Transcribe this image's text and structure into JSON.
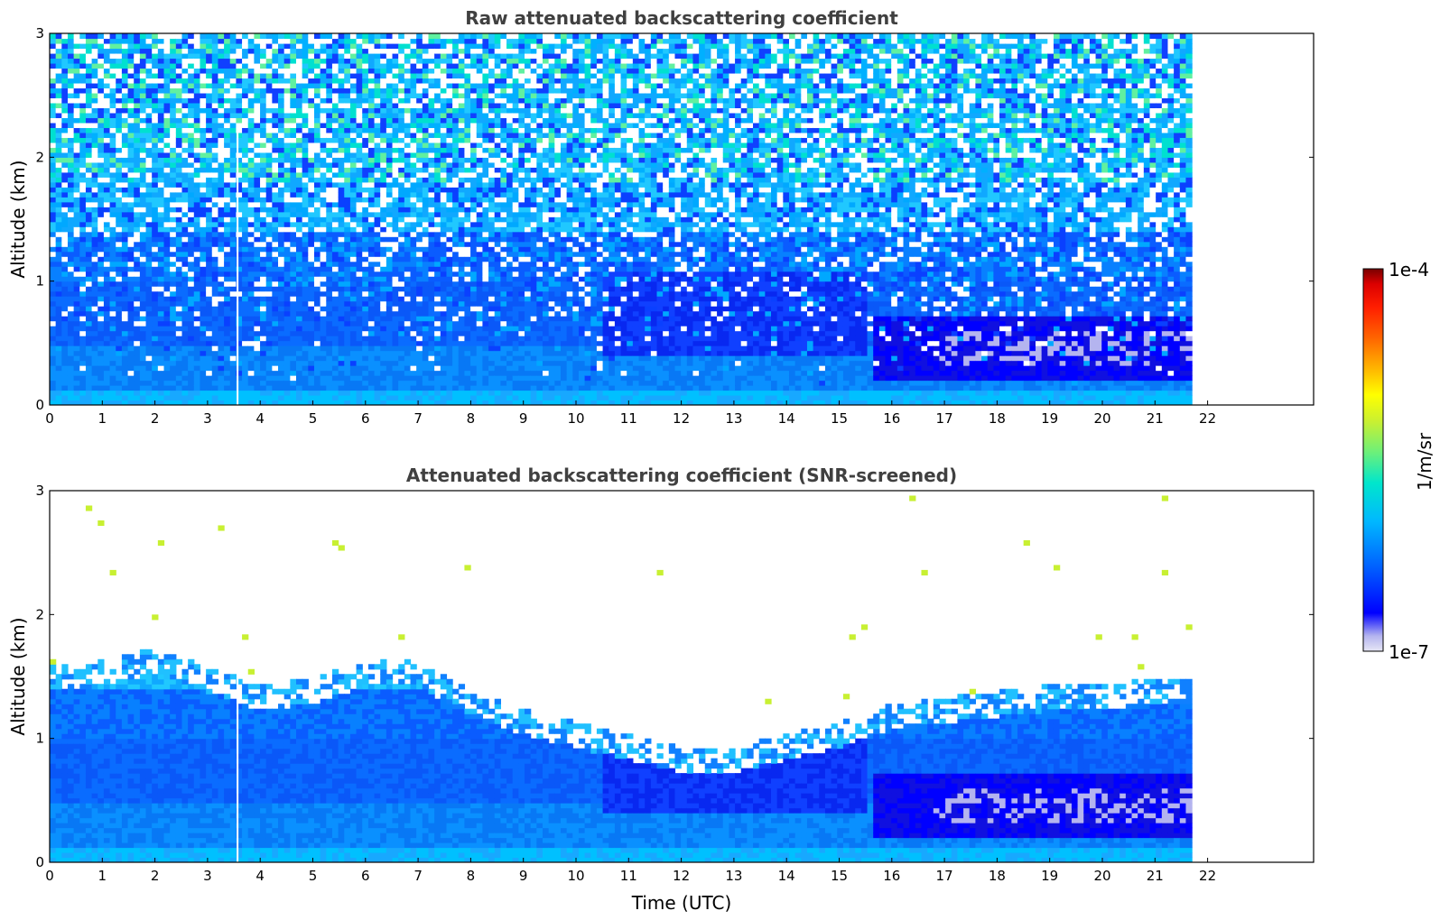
{
  "chart_data": [
    {
      "type": "heatmap",
      "title": "Raw attenuated backscattering coefficient",
      "xlabel": "",
      "ylabel": "Altitude (km)",
      "xlim": [
        0,
        24
      ],
      "ylim": [
        0,
        3
      ],
      "x_ticks": [
        "0",
        "1",
        "2",
        "3",
        "4",
        "5",
        "6",
        "7",
        "8",
        "9",
        "10",
        "11",
        "12",
        "13",
        "14",
        "15",
        "16",
        "17",
        "18",
        "19",
        "20",
        "21",
        "22"
      ],
      "y_ticks": [
        "0",
        "1",
        "2",
        "3"
      ],
      "data_extent_time_hours": [
        0,
        21.7
      ],
      "profile": {
        "altitude_km": [
          0,
          0.1,
          0.2,
          0.3,
          0.4,
          0.5,
          0.6,
          0.7,
          0.8,
          0.9,
          1.0,
          1.2,
          1.5,
          2.0,
          2.5,
          3.0
        ],
        "noise_fraction": [
          0,
          0,
          0.02,
          0.05,
          0.08,
          0.12,
          0.16,
          0.2,
          0.24,
          0.28,
          0.32,
          0.4,
          0.5,
          0.62,
          0.7,
          0.75
        ]
      },
      "low_cloud_layer": {
        "time_hours": [
          15.7,
          21.7
        ],
        "altitude_km": [
          0.25,
          0.7
        ]
      },
      "gap_time_hours": 3.57
    },
    {
      "type": "heatmap",
      "title": "Attenuated backscattering coefficient (SNR-screened)",
      "xlabel": "Time (UTC)",
      "ylabel": "Altitude (km)",
      "xlim": [
        0,
        24
      ],
      "ylim": [
        0,
        3
      ],
      "x_ticks": [
        "0",
        "1",
        "2",
        "3",
        "4",
        "5",
        "6",
        "7",
        "8",
        "9",
        "10",
        "11",
        "12",
        "13",
        "14",
        "15",
        "16",
        "17",
        "18",
        "19",
        "20",
        "21",
        "22"
      ],
      "y_ticks": [
        "0",
        "1",
        "2",
        "3"
      ],
      "data_extent_time_hours": [
        0,
        21.7
      ],
      "screened_top": {
        "time_hours": [
          0,
          1,
          2,
          3,
          4,
          5,
          6,
          7,
          8,
          9,
          10,
          11,
          12,
          13,
          14,
          15,
          16,
          17,
          18,
          19,
          20,
          21,
          21.7
        ],
        "altitude_km": [
          1.5,
          1.55,
          1.65,
          1.5,
          1.35,
          1.4,
          1.55,
          1.55,
          1.3,
          1.15,
          1.05,
          0.95,
          0.85,
          0.85,
          0.95,
          1.05,
          1.2,
          1.25,
          1.3,
          1.35,
          1.35,
          1.4,
          1.4
        ]
      },
      "low_cloud_layer": {
        "time_hours": [
          15.7,
          21.7
        ],
        "altitude_km": [
          0.25,
          0.7
        ]
      },
      "gap_time_hours": 3.57
    }
  ],
  "colorbar": {
    "label": "1/m/sr",
    "max_label": "1e-4",
    "min_label": "1e-7",
    "scale": "log",
    "colormap": [
      "#e6e6f5",
      "#b4b4ef",
      "#0000ff",
      "#0060ff",
      "#00b8ff",
      "#00e6cc",
      "#6cf07a",
      "#c8f032",
      "#ffff00",
      "#ffb400",
      "#ff6400",
      "#ff1e00",
      "#dc0000",
      "#780000"
    ]
  }
}
